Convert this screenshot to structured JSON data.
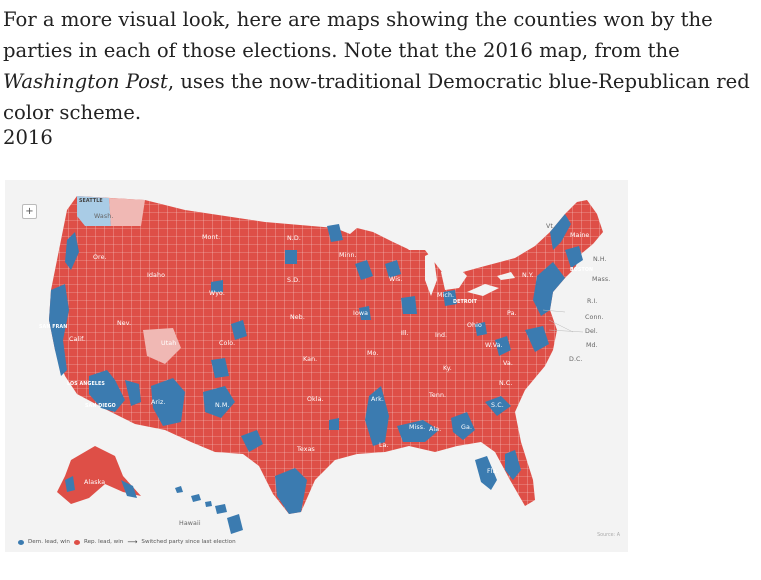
{
  "article": {
    "para_before": "For a more visual look, here are maps showing the counties won by the parties in each of those elections. Note that the 2016 map, from the ",
    "para_em": "Washington Post",
    "para_after": ", uses the now-traditional Democratic blue-Republican red color scheme.",
    "year_heading": "2016"
  },
  "map": {
    "zoom_label": "+",
    "colors": {
      "republican": "#de4f47",
      "democrat": "#3b7bb0",
      "dem_light": "#a9cce6",
      "rep_light": "#f0b8b4",
      "background": "#f3f3f3",
      "borders": "#f4d6d3"
    },
    "state_labels": {
      "wash": "Wash.",
      "ore": "Ore.",
      "calif": "Calif.",
      "idaho": "Idaho",
      "nev": "Nev.",
      "mont": "Mont.",
      "wyo": "Wyo.",
      "utah": "Utah",
      "ariz": "Ariz.",
      "colo": "Colo.",
      "nm": "N.M.",
      "nd": "N.D.",
      "sd": "S.D.",
      "neb": "Neb.",
      "kan": "Kan.",
      "okla": "Okla.",
      "texas": "Texas",
      "minn": "Minn.",
      "iowa": "Iowa",
      "mo": "Mo.",
      "ark": "Ark.",
      "la": "La.",
      "wis": "Wis.",
      "ill": "Ill.",
      "mich": "Mich.",
      "ind": "Ind.",
      "ohio": "Ohio",
      "ky": "Ky.",
      "tenn": "Tenn.",
      "miss": "Miss.",
      "ala": "Ala.",
      "ga": "Ga.",
      "fla": "Fla.",
      "sc": "S.C.",
      "nc": "N.C.",
      "va": "Va.",
      "wva": "W.Va.",
      "pa": "Pa.",
      "ny": "N.Y.",
      "maine": "Maine",
      "alaska": "Alaska",
      "hawaii": "Hawaii",
      "vt": "Vt.",
      "nh": "N.H.",
      "mass": "Mass.",
      "ri": "R.I.",
      "conn": "Conn.",
      "del": "Del.",
      "md": "Md.",
      "dc": "D.C."
    },
    "city_labels": {
      "seattle": "SEATTLE",
      "sanfran": "SAN FRAN",
      "losangeles": "LOS ANGELES",
      "sandiego": "SAN DIEGO",
      "detroit": "DETROIT",
      "boston": "BOSTON"
    },
    "legend": {
      "dem": "Dem. lead, win",
      "rep": "Rep. lead, win",
      "switched": "Switched party since last election"
    },
    "source": "Source: A"
  }
}
